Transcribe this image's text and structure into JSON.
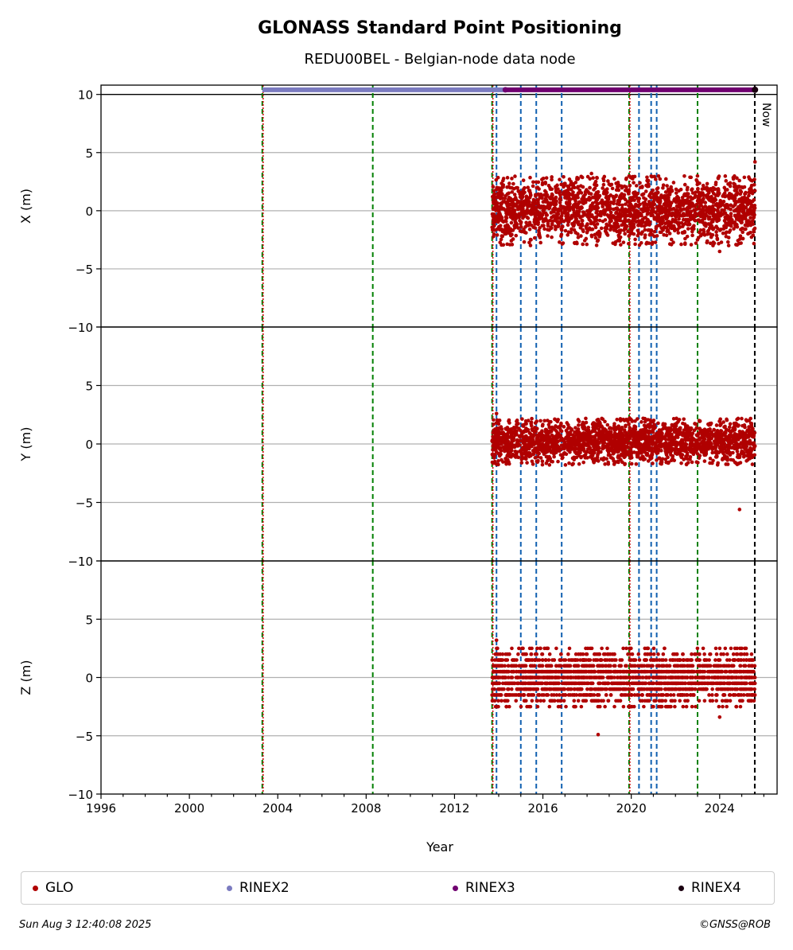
{
  "chart_data": {
    "type": "scatter",
    "title": "GLONASS Standard Point Positioning",
    "subtitle": "REDU00BEL - Belgian-node data node",
    "xlabel": "Year",
    "xlim": [
      1996,
      2026.6
    ],
    "xticks": [
      "1996",
      "2000",
      "2004",
      "2008",
      "2012",
      "2016",
      "2020",
      "2024"
    ],
    "now_label": "Now",
    "now_year": 2025.59,
    "panels": [
      {
        "ylabel": "X (m)",
        "ylim": [
          -10,
          10.8
        ],
        "yticks": [
          "−10",
          "−5",
          "0",
          "5",
          "10"
        ],
        "data_range": [
          -3,
          3
        ],
        "outliers": [
          [
            2025.6,
            4.2
          ],
          [
            2024.0,
            -3.5
          ],
          [
            2018.2,
            3.2
          ]
        ]
      },
      {
        "ylabel": "Y (m)",
        "ylim": [
          -10,
          10
        ],
        "yticks": [
          "−10",
          "−5",
          "0",
          "5",
          ""
        ],
        "data_range": [
          -1.8,
          2.2
        ],
        "outliers": [
          [
            2024.9,
            -5.6
          ],
          [
            2013.9,
            2.6
          ]
        ]
      },
      {
        "ylabel": "Z (m)",
        "ylim": [
          -10,
          10
        ],
        "yticks": [
          "−10",
          "−5",
          "0",
          "5",
          ""
        ],
        "data_range": [
          -2.5,
          2.5
        ],
        "outliers": [
          [
            2018.5,
            -4.9
          ],
          [
            2024.0,
            -3.4
          ],
          [
            2013.9,
            3.2
          ]
        ]
      }
    ],
    "event_lines": {
      "red": [
        2003.3,
        2013.7,
        2019.9
      ],
      "green": [
        2003.3,
        2008.3,
        2013.7,
        2019.9,
        2023.0
      ],
      "blue": [
        2013.9,
        2015.0,
        2015.7,
        2016.85,
        2020.35,
        2020.9,
        2021.15
      ]
    },
    "series": [
      {
        "name": "GLO",
        "color": "#b00000",
        "start": 2013.7,
        "end": 2025.6
      },
      {
        "name": "RINEX2",
        "color": "#7b7bc0",
        "start": 2003.3,
        "end": 2014.4
      },
      {
        "name": "RINEX3",
        "color": "#700070",
        "start": 2014.3,
        "end": 2025.6
      },
      {
        "name": "RINEX4",
        "color": "#1a0010",
        "start": 2025.5,
        "end": 2025.6
      }
    ],
    "grid": true,
    "legend_placement": "bottom"
  },
  "footer": {
    "timestamp": "Sun Aug  3 12:40:08 2025",
    "copyright": "©GNSS@ROB"
  }
}
